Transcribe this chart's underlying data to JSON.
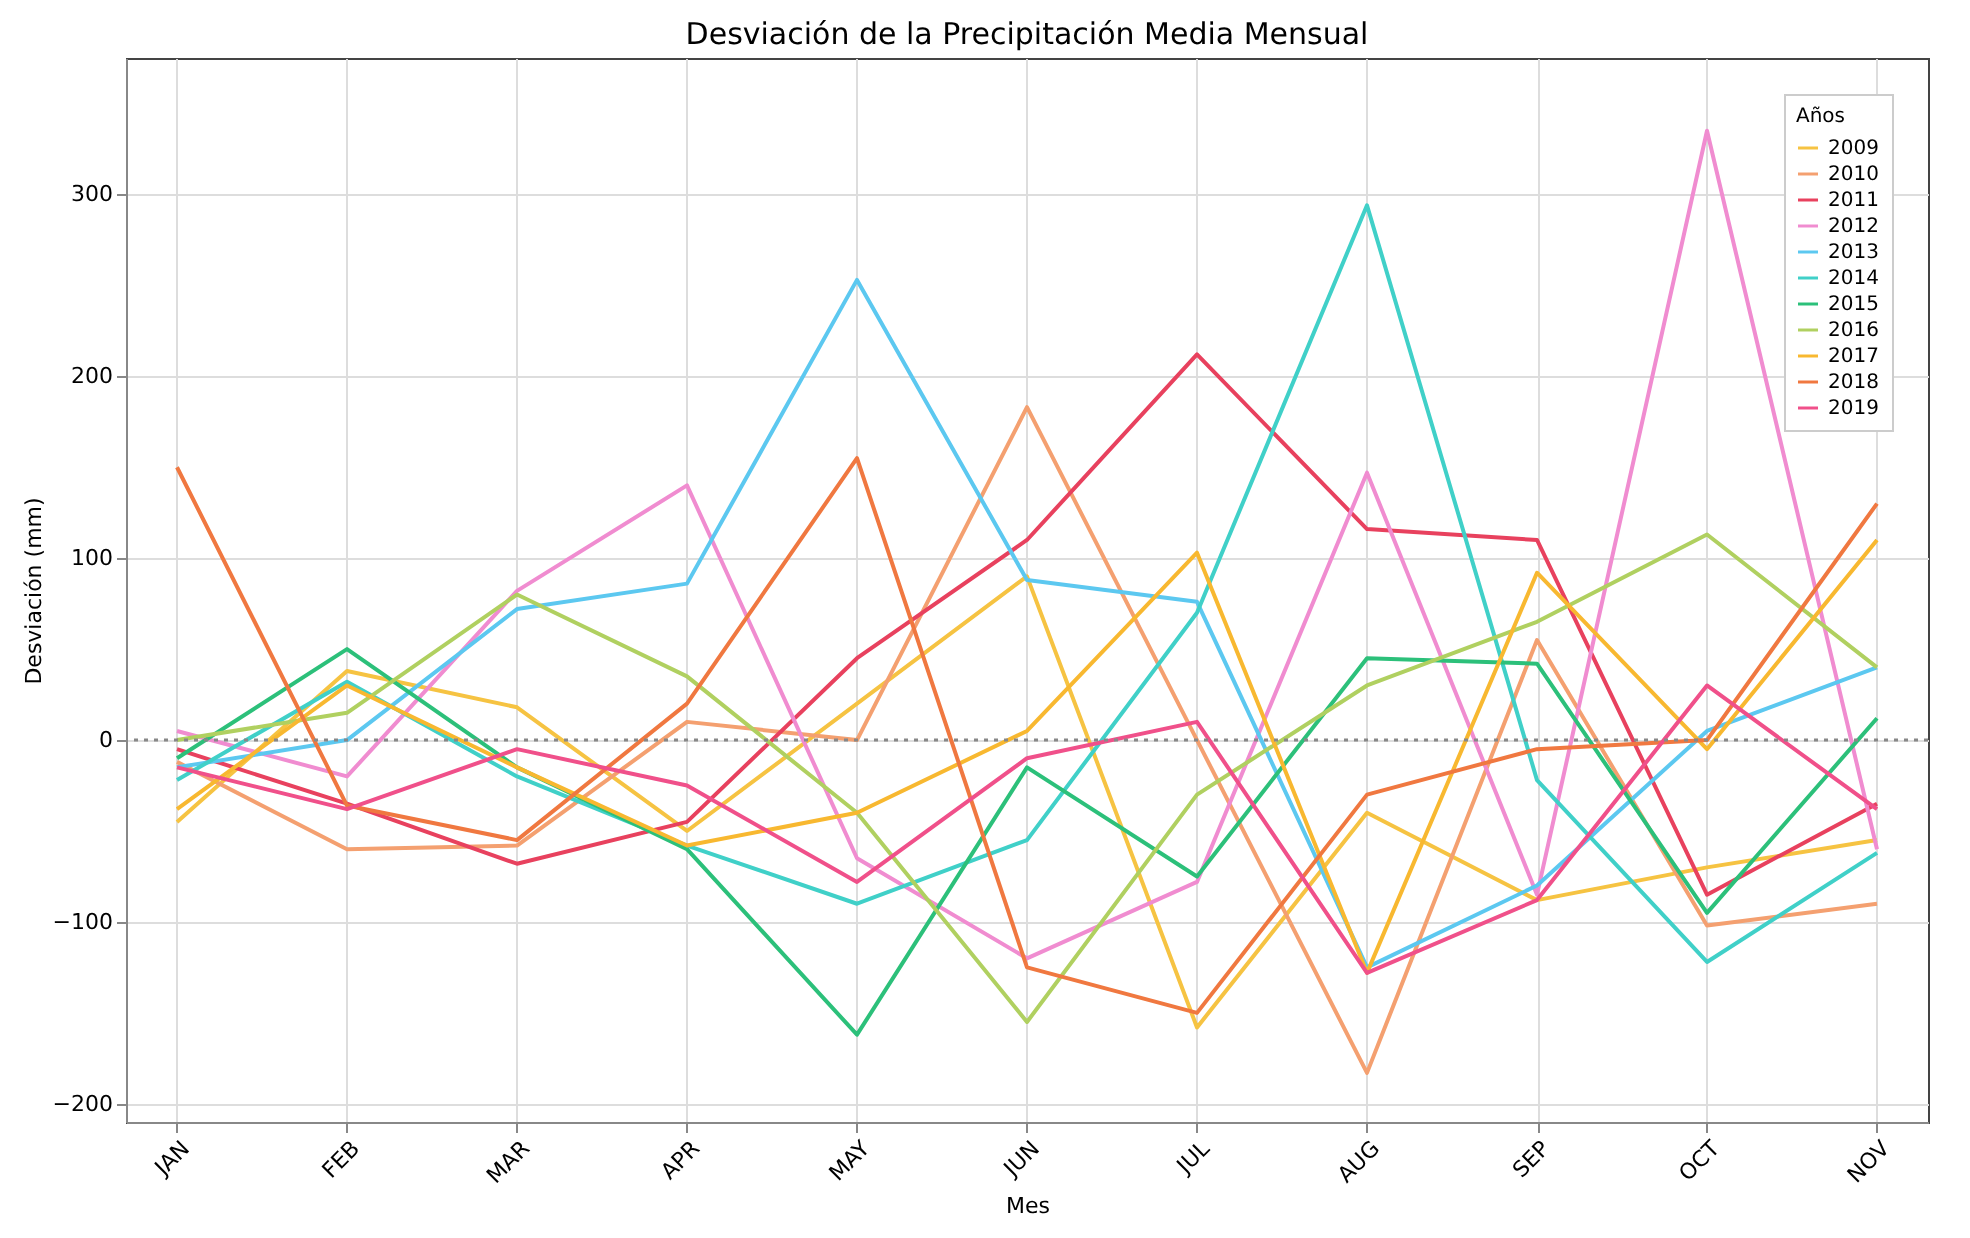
{
  "chart_data": {
    "type": "line",
    "title": "Desviación de la Precipitación Media Mensual",
    "xlabel": "Mes",
    "ylabel": "Desviación (mm)",
    "legend_title": "Años",
    "categories": [
      "JAN",
      "FEB",
      "MAR",
      "APR",
      "MAY",
      "JUN",
      "JUL",
      "AUG",
      "SEP",
      "OCT",
      "NOV"
    ],
    "ylim": [
      -210,
      375
    ],
    "yticks": [
      -200,
      -100,
      0,
      100,
      200,
      300
    ],
    "grid": true,
    "legend": "top right",
    "marker": "none",
    "line_style": "solid",
    "ref_lines": [
      {
        "axis": "y",
        "value": 0,
        "color": "#888888",
        "line_style": "dotted"
      }
    ],
    "series": [
      {
        "name": "2009",
        "color": "#f6c342",
        "values": [
          -45,
          38,
          18,
          -50,
          20,
          90,
          -158,
          -40,
          -88,
          -70,
          -55
        ]
      },
      {
        "name": "2010",
        "color": "#f4a070",
        "values": [
          -12,
          -60,
          -58,
          10,
          0,
          183,
          0,
          -183,
          55,
          -102,
          -90
        ]
      },
      {
        "name": "2011",
        "color": "#e8415e",
        "values": [
          -5,
          -35,
          -68,
          -45,
          45,
          110,
          212,
          116,
          110,
          -85,
          -35
        ]
      },
      {
        "name": "2012",
        "color": "#f08cd0",
        "values": [
          5,
          -20,
          82,
          140,
          -65,
          -120,
          -78,
          147,
          -85,
          335,
          -60
        ]
      },
      {
        "name": "2013",
        "color": "#5cc8f0",
        "values": [
          -15,
          0,
          72,
          86,
          253,
          88,
          76,
          -125,
          -80,
          5,
          40
        ]
      },
      {
        "name": "2014",
        "color": "#40d0c8",
        "values": [
          -22,
          32,
          -20,
          -58,
          -90,
          -55,
          70,
          294,
          -22,
          -122,
          -62
        ]
      },
      {
        "name": "2015",
        "color": "#2cc07a",
        "values": [
          -10,
          50,
          -15,
          -60,
          -162,
          -15,
          -75,
          45,
          42,
          -95,
          12
        ]
      },
      {
        "name": "2016",
        "color": "#b0d060",
        "values": [
          0,
          15,
          80,
          35,
          -40,
          -155,
          -30,
          30,
          65,
          113,
          40
        ]
      },
      {
        "name": "2017",
        "color": "#f8b830",
        "values": [
          -38,
          30,
          -15,
          -58,
          -40,
          5,
          103,
          -128,
          92,
          -5,
          110
        ]
      },
      {
        "name": "2018",
        "color": "#f07840",
        "values": [
          150,
          -36,
          -55,
          20,
          155,
          -125,
          -150,
          -30,
          -5,
          0,
          130
        ]
      },
      {
        "name": "2019",
        "color": "#f0508a",
        "values": [
          -15,
          -38,
          -5,
          -25,
          -78,
          -10,
          10,
          -128,
          -88,
          30,
          -38
        ]
      }
    ]
  }
}
